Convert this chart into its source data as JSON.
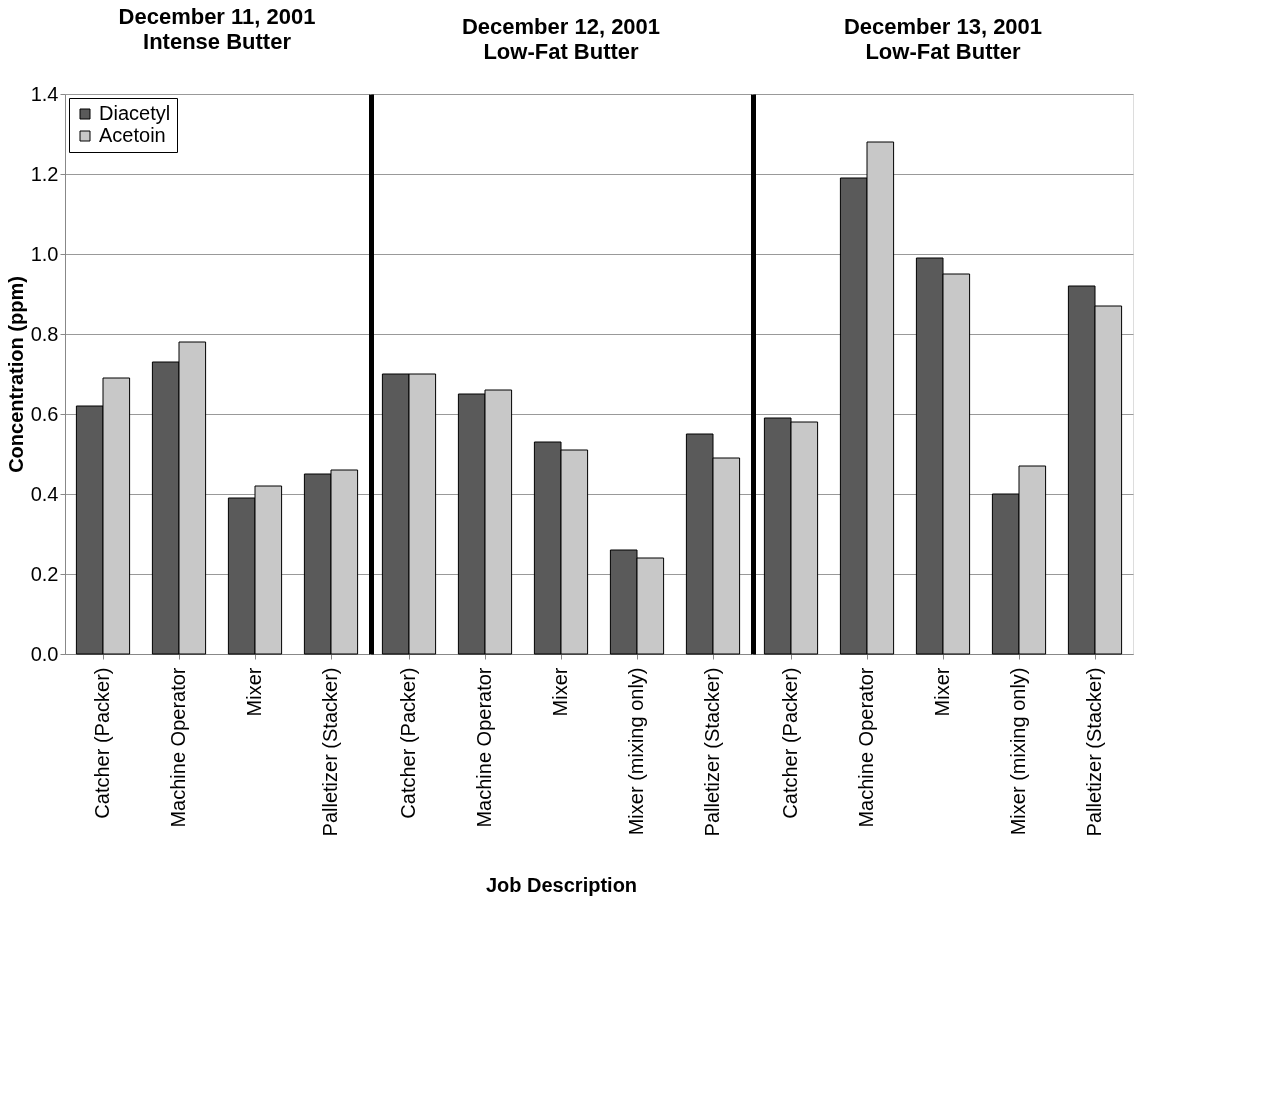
{
  "chart_data": [
    {
      "type": "bar",
      "title": "December 11, 2001",
      "subtitle": "Intense Butter",
      "ylabel": "Concentration (ppm)",
      "categories": [
        "Catcher (Packer)",
        "Machine Operator",
        "Mixer",
        "Palletizer (Stacker)"
      ],
      "ylim": [
        0,
        1.4
      ],
      "yticks": [
        {
          "value": 0,
          "label": "0.0"
        },
        0.2,
        0.4,
        0.6,
        0.8,
        {
          "value": 1,
          "label": "1.0"
        },
        1.2,
        1.4
      ],
      "grid": "y",
      "legend": "top left",
      "series": [
        {
          "name": "Diacetyl",
          "color": "#5a5a5a",
          "values": [
            0.62,
            0.73,
            0.39,
            0.45
          ]
        },
        {
          "name": "Acetoin",
          "color": "#c8c8c8",
          "values": [
            0.69,
            0.78,
            0.42,
            0.46
          ]
        }
      ]
    },
    {
      "type": "bar",
      "title": "December 12, 2001",
      "subtitle": "Low-Fat Butter",
      "xlabel": "Job Description",
      "categories": [
        "Catcher (Packer)",
        "Machine Operator",
        "Mixer",
        "Mixer (mixing only)",
        "Palletizer (Stacker)"
      ],
      "ylim": [
        0,
        1.4
      ],
      "yticks": [
        0,
        0.2,
        0.4,
        0.6,
        0.8,
        1,
        1.2,
        1.4
      ],
      "grid": "y",
      "tick_labels": "x",
      "series": [
        {
          "color": "#5a5a5a",
          "values": [
            0.7,
            0.65,
            0.53,
            0.26,
            0.55
          ]
        },
        {
          "color": "#c8c8c8",
          "values": [
            0.7,
            0.66,
            0.51,
            0.24,
            0.49
          ]
        }
      ]
    },
    {
      "type": "bar",
      "title": "December 13, 2001",
      "subtitle": "Low-Fat Butter",
      "categories": [
        "Catcher (Packer)",
        "Machine Operator",
        "Mixer",
        "Mixer (mixing only)",
        "Palletizer (Stacker)"
      ],
      "ylim": [
        0,
        1.4
      ],
      "yticks": [
        0,
        0.2,
        0.4,
        0.6,
        0.8,
        1,
        1.2,
        1.4
      ],
      "grid": "y",
      "tick_labels": "x",
      "series": [
        {
          "color": "#5a5a5a",
          "values": [
            0.59,
            1.19,
            0.99,
            0.4,
            0.92
          ]
        },
        {
          "color": "#c8c8c8",
          "values": [
            0.58,
            1.28,
            0.95,
            0.47,
            0.87
          ]
        }
      ]
    }
  ]
}
